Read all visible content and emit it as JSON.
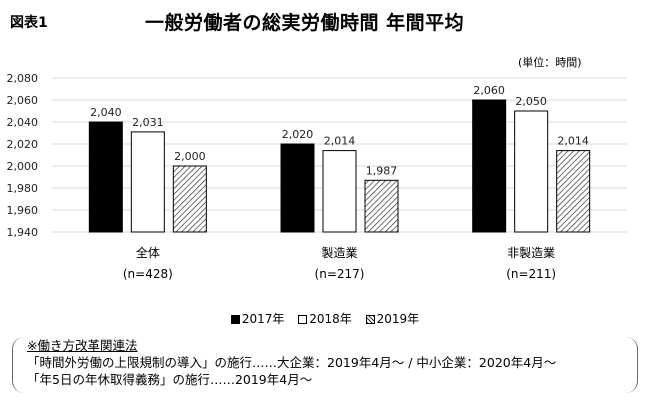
{
  "figure_label": "図表1",
  "unit_label": "(単位：時間)",
  "chart_data": {
    "type": "bar",
    "title": "一般労働者の総実労働時間  年間平均",
    "categories": [
      "全体",
      "製造業",
      "非製造業"
    ],
    "category_sublabels": [
      "(n=428)",
      "(n=217)",
      "(n=211)"
    ],
    "series": [
      {
        "name": "2017年",
        "values": [
          2040,
          2020,
          2060
        ],
        "labels": [
          "2,040",
          "2,020",
          "2,060"
        ],
        "style": "solid-black"
      },
      {
        "name": "2018年",
        "values": [
          2031,
          2014,
          2050
        ],
        "labels": [
          "2,031",
          "2,014",
          "2,050"
        ],
        "style": "white"
      },
      {
        "name": "2019年",
        "values": [
          2000,
          1987,
          2014
        ],
        "labels": [
          "2,000",
          "1,987",
          "2,014"
        ],
        "style": "hatched"
      }
    ],
    "ylim": [
      1940,
      2080
    ],
    "yticks": [
      1940,
      1960,
      1980,
      2000,
      2020,
      2040,
      2060,
      2080
    ],
    "ytick_labels": [
      "1,940",
      "1,960",
      "1,980",
      "2,000",
      "2,020",
      "2,040",
      "2,060",
      "2,080"
    ],
    "grid": true,
    "legend_position": "bottom",
    "xlabel": "",
    "ylabel": "時間"
  },
  "note": {
    "heading": "※働き方改革関連法",
    "lines": [
      "「時間外労働の上限規制の導入」の施行……大企業：2019年4月～ / 中小企業：2020年4月～",
      "「年5日の年休取得義務」の施行……2019年4月～"
    ]
  }
}
